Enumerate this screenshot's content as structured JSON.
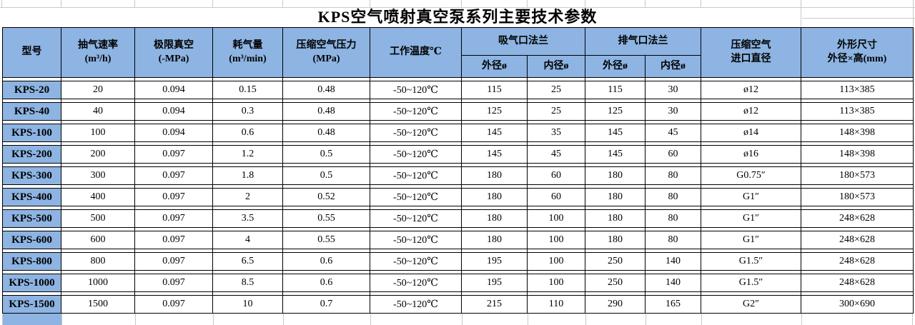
{
  "title": "KPS空气喷射真空泵系列主要技术参数",
  "colors": {
    "header_bg": "#8DB4E2",
    "table_border": "#000000",
    "gridline": "#C9C9C9"
  },
  "table": {
    "headers": {
      "model": "型号",
      "pump_speed": "抽气速率\n(m³/h)",
      "ultimate_vacuum": "极限真空\n(-MPa)",
      "air_consumption": "耗气量\n(m³/min)",
      "air_pressure": "压缩空气压力\n(MPa)",
      "working_temp": "工作温度℃",
      "suction_flange_group": "吸气口法兰",
      "exhaust_flange_group": "排气口法兰",
      "suction_outer": "外径ø",
      "suction_inner": "内径ø",
      "exhaust_outer": "外径ø",
      "exhaust_inner": "内径ø",
      "inlet_dia": "压缩空气\n进口直径",
      "dimensions": "外形尺寸\n外径×高(mm)"
    },
    "rows": [
      [
        "KPS-20",
        "20",
        "0.094",
        "0.15",
        "0.48",
        "-50~120℃",
        "115",
        "25",
        "115",
        "30",
        "ø12",
        "113×385"
      ],
      [
        "KPS-40",
        "40",
        "0.094",
        "0.3",
        "0.48",
        "-50~120℃",
        "125",
        "25",
        "125",
        "30",
        "ø12",
        "113×385"
      ],
      [
        "KPS-100",
        "100",
        "0.094",
        "0.6",
        "0.48",
        "-50~120℃",
        "145",
        "35",
        "145",
        "45",
        "ø14",
        "148×398"
      ],
      [
        "KPS-200",
        "200",
        "0.097",
        "1.2",
        "0.5",
        "-50~120℃",
        "145",
        "45",
        "145",
        "60",
        "ø16",
        "148×398"
      ],
      [
        "KPS-300",
        "300",
        "0.097",
        "1.8",
        "0.5",
        "-50~120℃",
        "180",
        "60",
        "180",
        "80",
        "G0.75″",
        "180×573"
      ],
      [
        "KPS-400",
        "400",
        "0.097",
        "2",
        "0.52",
        "-50~120℃",
        "180",
        "60",
        "180",
        "80",
        "G1″",
        "180×573"
      ],
      [
        "KPS-500",
        "500",
        "0.097",
        "3.5",
        "0.55",
        "-50~120℃",
        "180",
        "100",
        "180",
        "80",
        "G1″",
        "248×628"
      ],
      [
        "KPS-600",
        "600",
        "0.097",
        "4",
        "0.55",
        "-50~120℃",
        "180",
        "100",
        "180",
        "80",
        "G1″",
        "248×628"
      ],
      [
        "KPS-800",
        "800",
        "0.097",
        "6.5",
        "0.6",
        "-50~120℃",
        "195",
        "100",
        "250",
        "140",
        "G1.5″",
        "248×628"
      ],
      [
        "KPS-1000",
        "1000",
        "0.097",
        "8.5",
        "0.6",
        "-50~120℃",
        "195",
        "100",
        "250",
        "140",
        "G1.5″",
        "248×628"
      ],
      [
        "KPS-1500",
        "1500",
        "0.097",
        "10",
        "0.7",
        "-50~120℃",
        "215",
        "110",
        "290",
        "165",
        "G2″",
        "300×690"
      ]
    ]
  }
}
